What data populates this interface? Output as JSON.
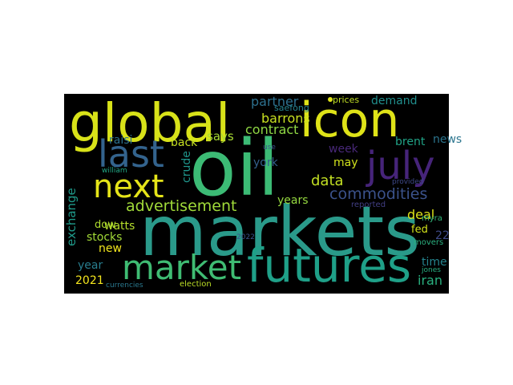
{
  "colors": {
    "background": "#000000",
    "page": "#ffffff"
  },
  "words": [
    {
      "id": "oil",
      "text": "oil",
      "color": "#3cbb75"
    },
    {
      "id": "markets",
      "text": "markets",
      "color": "#2a9a8a"
    },
    {
      "id": "global",
      "text": "global",
      "color": "#d8e219"
    },
    {
      "id": "icon",
      "text": "icon",
      "color": "#dfe318"
    },
    {
      "id": "futures",
      "text": "futures",
      "color": "#1fa088"
    },
    {
      "id": "market",
      "text": "market",
      "color": "#3fbc73"
    },
    {
      "id": "july",
      "text": "july",
      "color": "#46247a"
    },
    {
      "id": "next",
      "text": "next",
      "color": "#e5e419"
    },
    {
      "id": "last",
      "text": "last",
      "color": "#33638d"
    },
    {
      "id": "advertisement",
      "text": "advertisement",
      "color": "#a0da39"
    },
    {
      "id": "commodities",
      "text": "commodities",
      "color": "#3b528b"
    },
    {
      "id": "data",
      "text": "data",
      "color": "#c2df23"
    },
    {
      "id": "barrons",
      "text": "barrons",
      "color": "#c8e020"
    },
    {
      "id": "contract",
      "text": "contract",
      "color": "#8fd744"
    },
    {
      "id": "partner",
      "text": "partner",
      "color": "#2d708e"
    },
    {
      "id": "demand",
      "text": "demand",
      "color": "#218f8d"
    },
    {
      "id": "news",
      "text": "news",
      "color": "#2b758e"
    },
    {
      "id": "brent",
      "text": "brent",
      "color": "#20a386"
    },
    {
      "id": "week",
      "text": "week",
      "color": "#482878"
    },
    {
      "id": "may",
      "text": "may",
      "color": "#d0e11c"
    },
    {
      "id": "york",
      "text": "york",
      "color": "#34608d"
    },
    {
      "id": "years",
      "text": "years",
      "color": "#95d840"
    },
    {
      "id": "says",
      "text": "says",
      "color": "#a8db34"
    },
    {
      "id": "back",
      "text": "back",
      "color": "#c5e021"
    },
    {
      "id": "raisi",
      "text": "raisi",
      "color": "#2c718e"
    },
    {
      "id": "watts",
      "text": "watts",
      "color": "#b5de2b"
    },
    {
      "id": "dow",
      "text": "dow",
      "color": "#b0dd2f"
    },
    {
      "id": "stocks",
      "text": "stocks",
      "color": "#a2da37"
    },
    {
      "id": "new",
      "text": "new",
      "color": "#f1e51d"
    },
    {
      "id": "year",
      "text": "year",
      "color": "#287d8e"
    },
    {
      "id": "2021",
      "text": "2021",
      "color": "#f4e61e"
    },
    {
      "id": "exchange",
      "text": "exchange",
      "color": "#1f9a8a"
    },
    {
      "id": "crude",
      "text": "crude",
      "color": "#1f958b"
    },
    {
      "id": "deal",
      "text": "deal",
      "color": "#dde318"
    },
    {
      "id": "fed",
      "text": "fed",
      "color": "#d2e21b"
    },
    {
      "id": "22",
      "text": "22",
      "color": "#3e4a89"
    },
    {
      "id": "time",
      "text": "time",
      "color": "#25848e"
    },
    {
      "id": "iran",
      "text": "iran",
      "color": "#29af7f"
    },
    {
      "id": "movers",
      "text": "movers",
      "color": "#2ab07f"
    },
    {
      "id": "jones",
      "text": "jones",
      "color": "#27ad81"
    },
    {
      "id": "myra",
      "text": "myra",
      "color": "#32b67a"
    },
    {
      "id": "provided",
      "text": "provided",
      "color": "#3e4989"
    },
    {
      "id": "reported",
      "text": "reported",
      "color": "#423f85"
    },
    {
      "id": "william",
      "text": "william",
      "color": "#22a785"
    },
    {
      "id": "use",
      "text": "use",
      "color": "#3b528b"
    },
    {
      "id": "saefong",
      "text": "saefong",
      "color": "#26828e"
    },
    {
      "id": "prices",
      "text": "prices",
      "color": "#c0df25"
    },
    {
      "id": "election",
      "text": "election",
      "color": "#bddf26"
    },
    {
      "id": "currencies",
      "text": "currencies",
      "color": "#2a788e"
    },
    {
      "id": "2022",
      "text": "2022",
      "color": "#3a538b"
    }
  ]
}
